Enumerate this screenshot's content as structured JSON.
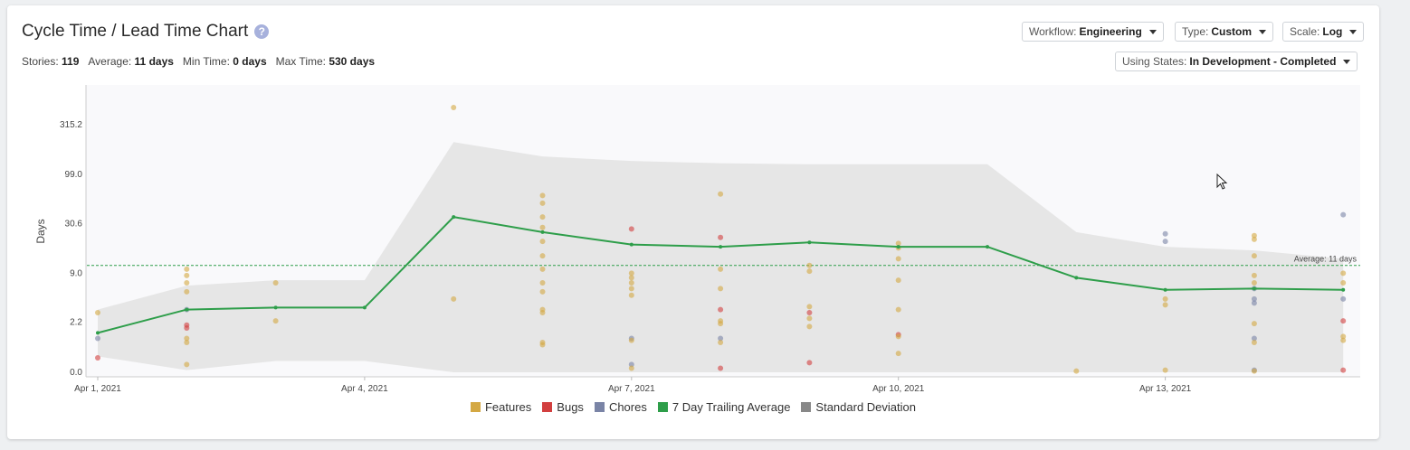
{
  "header": {
    "title": "Cycle Time / Lead Time Chart",
    "help_glyph": "?",
    "stats": [
      {
        "label": "Stories:",
        "value": "119"
      },
      {
        "label": "Average:",
        "value": "11 days"
      },
      {
        "label": "Min Time:",
        "value": "0 days"
      },
      {
        "label": "Max Time:",
        "value": "530 days"
      }
    ]
  },
  "controls": {
    "workflow": {
      "label": "Workflow:",
      "value": "Engineering"
    },
    "type": {
      "label": "Type:",
      "value": "Custom"
    },
    "scale": {
      "label": "Scale:",
      "value": "Log"
    },
    "states": {
      "label": "Using States:",
      "value": "In Development - Completed"
    }
  },
  "colors": {
    "features": "#d4a843",
    "bugs": "#d23f3f",
    "chores": "#7a84a6",
    "trailing": "#2e9e4a",
    "stddev": "#888888",
    "band": "#e6e6e6"
  },
  "chart_data": {
    "type": "scatter",
    "scale": "log",
    "ylabel": "Days",
    "yticks": [
      "0.0",
      "2.2",
      "9.0",
      "30.6",
      "99.0",
      "315.2"
    ],
    "xticks": [
      "Apr 1, 2021",
      "Apr 4, 2021",
      "Apr 7, 2021",
      "Apr 10, 2021",
      "Apr 13, 2021"
    ],
    "average": {
      "value": 11,
      "label": "Average: 11 days"
    },
    "legend": [
      "Features",
      "Bugs",
      "Chores",
      "7 Day Trailing Average",
      "Standard Deviation"
    ],
    "trailing_average": [
      {
        "x": "2021-04-01",
        "y": 1.5
      },
      {
        "x": "2021-04-02",
        "y": 3.3
      },
      {
        "x": "2021-04-03",
        "y": 3.5
      },
      {
        "x": "2021-04-04",
        "y": 3.5
      },
      {
        "x": "2021-04-05",
        "y": 36
      },
      {
        "x": "2021-04-06",
        "y": 25
      },
      {
        "x": "2021-04-07",
        "y": 18.5
      },
      {
        "x": "2021-04-08",
        "y": 17.5
      },
      {
        "x": "2021-04-09",
        "y": 19.5
      },
      {
        "x": "2021-04-10",
        "y": 17.5
      },
      {
        "x": "2021-04-11",
        "y": 17.5
      },
      {
        "x": "2021-04-12",
        "y": 8
      },
      {
        "x": "2021-04-13",
        "y": 5.8
      },
      {
        "x": "2021-04-14",
        "y": 6
      },
      {
        "x": "2021-04-15",
        "y": 5.8
      }
    ],
    "std_dev_band": [
      {
        "x": "2021-04-01",
        "lo": 0.45,
        "hi": 3.3
      },
      {
        "x": "2021-04-02",
        "lo": 0.05,
        "hi": 6.5
      },
      {
        "x": "2021-04-03",
        "lo": 0.3,
        "hi": 7.5
      },
      {
        "x": "2021-04-04",
        "lo": 0.3,
        "hi": 7.5
      },
      {
        "x": "2021-04-05",
        "lo": 0.0,
        "hi": 210
      },
      {
        "x": "2021-04-06",
        "lo": 0.0,
        "hi": 150
      },
      {
        "x": "2021-04-07",
        "lo": 0.0,
        "hi": 135
      },
      {
        "x": "2021-04-08",
        "lo": 0.0,
        "hi": 128
      },
      {
        "x": "2021-04-09",
        "lo": 0.0,
        "hi": 125
      },
      {
        "x": "2021-04-10",
        "lo": 0.0,
        "hi": 125
      },
      {
        "x": "2021-04-11",
        "lo": 0.0,
        "hi": 125
      },
      {
        "x": "2021-04-12",
        "lo": 0.0,
        "hi": 25
      },
      {
        "x": "2021-04-13",
        "lo": 0.0,
        "hi": 17.5
      },
      {
        "x": "2021-04-14",
        "lo": 0.0,
        "hi": 16
      },
      {
        "x": "2021-04-15",
        "lo": 0.0,
        "hi": 13
      }
    ],
    "points": [
      {
        "x": "2021-04-01",
        "y": 3.0,
        "t": "Features"
      },
      {
        "x": "2021-04-01",
        "y": 1.2,
        "t": "Chores"
      },
      {
        "x": "2021-04-01",
        "y": 0.4,
        "t": "Bugs"
      },
      {
        "x": "2021-04-02",
        "y": 10.0,
        "t": "Features"
      },
      {
        "x": "2021-04-02",
        "y": 8.5,
        "t": "Features"
      },
      {
        "x": "2021-04-02",
        "y": 7.0,
        "t": "Features"
      },
      {
        "x": "2021-04-02",
        "y": 5.5,
        "t": "Features"
      },
      {
        "x": "2021-04-02",
        "y": 3.3,
        "t": "Chores"
      },
      {
        "x": "2021-04-02",
        "y": 2.0,
        "t": "Bugs"
      },
      {
        "x": "2021-04-02",
        "y": 1.8,
        "t": "Bugs"
      },
      {
        "x": "2021-04-02",
        "y": 1.2,
        "t": "Features"
      },
      {
        "x": "2021-04-02",
        "y": 1.0,
        "t": "Features"
      },
      {
        "x": "2021-04-02",
        "y": 0.2,
        "t": "Features"
      },
      {
        "x": "2021-04-03",
        "y": 7.0,
        "t": "Features"
      },
      {
        "x": "2021-04-03",
        "y": 2.3,
        "t": "Features"
      },
      {
        "x": "2021-04-05",
        "y": 470,
        "t": "Features"
      },
      {
        "x": "2021-04-05",
        "y": 4.5,
        "t": "Features"
      },
      {
        "x": "2021-04-06",
        "y": 60,
        "t": "Features"
      },
      {
        "x": "2021-04-06",
        "y": 50,
        "t": "Features"
      },
      {
        "x": "2021-04-06",
        "y": 36,
        "t": "Features"
      },
      {
        "x": "2021-04-06",
        "y": 28,
        "t": "Features"
      },
      {
        "x": "2021-04-06",
        "y": 20,
        "t": "Features"
      },
      {
        "x": "2021-04-06",
        "y": 14,
        "t": "Features"
      },
      {
        "x": "2021-04-06",
        "y": 10,
        "t": "Features"
      },
      {
        "x": "2021-04-06",
        "y": 7.0,
        "t": "Features"
      },
      {
        "x": "2021-04-06",
        "y": 5.5,
        "t": "Features"
      },
      {
        "x": "2021-04-06",
        "y": 3.3,
        "t": "Features"
      },
      {
        "x": "2021-04-06",
        "y": 3.0,
        "t": "Features"
      },
      {
        "x": "2021-04-06",
        "y": 1.0,
        "t": "Features"
      },
      {
        "x": "2021-04-06",
        "y": 0.9,
        "t": "Features"
      },
      {
        "x": "2021-04-07",
        "y": 27,
        "t": "Bugs"
      },
      {
        "x": "2021-04-07",
        "y": 9.0,
        "t": "Features"
      },
      {
        "x": "2021-04-07",
        "y": 8.0,
        "t": "Features"
      },
      {
        "x": "2021-04-07",
        "y": 7.0,
        "t": "Features"
      },
      {
        "x": "2021-04-07",
        "y": 6.0,
        "t": "Features"
      },
      {
        "x": "2021-04-07",
        "y": 5.0,
        "t": "Features"
      },
      {
        "x": "2021-04-07",
        "y": 1.2,
        "t": "Chores"
      },
      {
        "x": "2021-04-07",
        "y": 1.1,
        "t": "Features"
      },
      {
        "x": "2021-04-07",
        "y": 0.2,
        "t": "Chores"
      },
      {
        "x": "2021-04-07",
        "y": 0.1,
        "t": "Features"
      },
      {
        "x": "2021-04-08",
        "y": 62,
        "t": "Features"
      },
      {
        "x": "2021-04-08",
        "y": 22,
        "t": "Bugs"
      },
      {
        "x": "2021-04-08",
        "y": 10.0,
        "t": "Features"
      },
      {
        "x": "2021-04-08",
        "y": 6.0,
        "t": "Features"
      },
      {
        "x": "2021-04-08",
        "y": 3.3,
        "t": "Bugs"
      },
      {
        "x": "2021-04-08",
        "y": 2.3,
        "t": "Features"
      },
      {
        "x": "2021-04-08",
        "y": 2.1,
        "t": "Features"
      },
      {
        "x": "2021-04-08",
        "y": 1.2,
        "t": "Chores"
      },
      {
        "x": "2021-04-08",
        "y": 1.0,
        "t": "Features"
      },
      {
        "x": "2021-04-08",
        "y": 0.1,
        "t": "Bugs"
      },
      {
        "x": "2021-04-09",
        "y": 11.0,
        "t": "Features"
      },
      {
        "x": "2021-04-09",
        "y": 9.5,
        "t": "Features"
      },
      {
        "x": "2021-04-09",
        "y": 3.6,
        "t": "Features"
      },
      {
        "x": "2021-04-09",
        "y": 3.0,
        "t": "Bugs"
      },
      {
        "x": "2021-04-09",
        "y": 2.5,
        "t": "Features"
      },
      {
        "x": "2021-04-09",
        "y": 1.9,
        "t": "Features"
      },
      {
        "x": "2021-04-09",
        "y": 0.25,
        "t": "Bugs"
      },
      {
        "x": "2021-04-10",
        "y": 19,
        "t": "Features"
      },
      {
        "x": "2021-04-10",
        "y": 17,
        "t": "Features"
      },
      {
        "x": "2021-04-10",
        "y": 13,
        "t": "Features"
      },
      {
        "x": "2021-04-10",
        "y": 7.5,
        "t": "Features"
      },
      {
        "x": "2021-04-10",
        "y": 3.3,
        "t": "Features"
      },
      {
        "x": "2021-04-10",
        "y": 1.4,
        "t": "Bugs"
      },
      {
        "x": "2021-04-10",
        "y": 1.3,
        "t": "Features"
      },
      {
        "x": "2021-04-10",
        "y": 0.55,
        "t": "Features"
      },
      {
        "x": "2021-04-12",
        "y": 0.03,
        "t": "Features"
      },
      {
        "x": "2021-04-13",
        "y": 24,
        "t": "Chores"
      },
      {
        "x": "2021-04-13",
        "y": 20,
        "t": "Chores"
      },
      {
        "x": "2021-04-13",
        "y": 4.5,
        "t": "Features"
      },
      {
        "x": "2021-04-13",
        "y": 3.8,
        "t": "Features"
      },
      {
        "x": "2021-04-13",
        "y": 0.05,
        "t": "Features"
      },
      {
        "x": "2021-04-14",
        "y": 23,
        "t": "Features"
      },
      {
        "x": "2021-04-14",
        "y": 21,
        "t": "Features"
      },
      {
        "x": "2021-04-14",
        "y": 14,
        "t": "Features"
      },
      {
        "x": "2021-04-14",
        "y": 8.5,
        "t": "Features"
      },
      {
        "x": "2021-04-14",
        "y": 7.0,
        "t": "Features"
      },
      {
        "x": "2021-04-14",
        "y": 6.0,
        "t": "Chores"
      },
      {
        "x": "2021-04-14",
        "y": 4.5,
        "t": "Chores"
      },
      {
        "x": "2021-04-14",
        "y": 4.0,
        "t": "Chores"
      },
      {
        "x": "2021-04-14",
        "y": 2.1,
        "t": "Features"
      },
      {
        "x": "2021-04-14",
        "y": 1.2,
        "t": "Chores"
      },
      {
        "x": "2021-04-14",
        "y": 1.0,
        "t": "Features"
      },
      {
        "x": "2021-04-14",
        "y": 0.05,
        "t": "Chores"
      },
      {
        "x": "2021-04-14",
        "y": 0.03,
        "t": "Features"
      },
      {
        "x": "2021-04-15",
        "y": 38,
        "t": "Chores"
      },
      {
        "x": "2021-04-15",
        "y": 9.0,
        "t": "Features"
      },
      {
        "x": "2021-04-15",
        "y": 7.0,
        "t": "Features"
      },
      {
        "x": "2021-04-15",
        "y": 4.5,
        "t": "Chores"
      },
      {
        "x": "2021-04-15",
        "y": 2.3,
        "t": "Bugs"
      },
      {
        "x": "2021-04-15",
        "y": 1.3,
        "t": "Features"
      },
      {
        "x": "2021-04-15",
        "y": 1.1,
        "t": "Features"
      },
      {
        "x": "2021-04-15",
        "y": 0.05,
        "t": "Bugs"
      }
    ]
  }
}
